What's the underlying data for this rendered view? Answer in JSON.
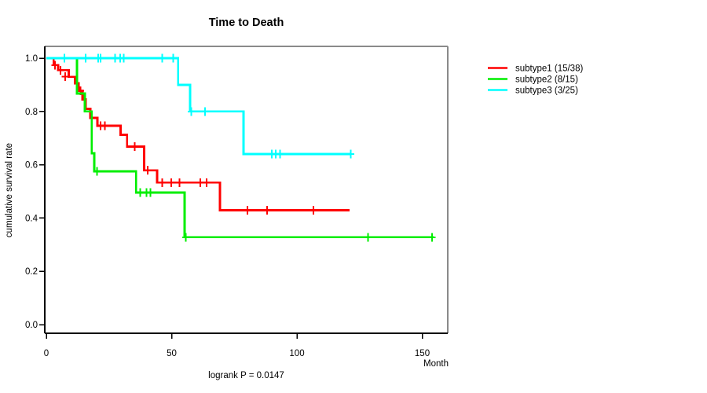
{
  "chart": {
    "title": "Time to Death",
    "xlabel": "Month",
    "ylabel": "cumulative survival rate",
    "footnote": "logrank P = 0.0147"
  },
  "chart_data": {
    "type": "line",
    "subtype": "kaplan-meier-step",
    "title": "Time to Death",
    "xlabel": "Month",
    "ylabel": "cumulative survival rate",
    "annotation": "logrank P = 0.0147",
    "xlim": [
      0,
      160
    ],
    "ylim": [
      0,
      1.0
    ],
    "x_ticks": [
      0,
      50,
      100,
      150
    ],
    "y_ticks": [
      0.0,
      0.2,
      0.4,
      0.6,
      0.8,
      1.0
    ],
    "grid": false,
    "legend_position": "right-outside-top",
    "box_border_colors": {
      "top": "#8a8a8a",
      "right": "#8a8a8a",
      "left": "#000000",
      "bottom": "#000000"
    },
    "series": [
      {
        "name": "subtype1 (15/38)",
        "color": "#ff0000",
        "steps": [
          [
            0,
            1.0
          ],
          [
            2.9,
            0.974
          ],
          [
            4.7,
            0.955
          ],
          [
            8.9,
            0.93
          ],
          [
            11.4,
            0.906
          ],
          [
            12.9,
            0.878
          ],
          [
            14.4,
            0.845
          ],
          [
            15.7,
            0.81
          ],
          [
            17.6,
            0.776
          ],
          [
            20.4,
            0.746
          ],
          [
            29.6,
            0.712
          ],
          [
            32.2,
            0.668
          ],
          [
            39.0,
            0.579
          ],
          [
            44.2,
            0.533
          ],
          [
            69.3,
            0.429
          ]
        ],
        "end_x": 121,
        "censor_marks": [
          [
            3.5,
            0.974
          ],
          [
            5.6,
            0.955
          ],
          [
            7.5,
            0.93
          ],
          [
            13.6,
            0.878
          ],
          [
            21.7,
            0.746
          ],
          [
            23.3,
            0.746
          ],
          [
            35.3,
            0.668
          ],
          [
            40.5,
            0.579
          ],
          [
            46.3,
            0.533
          ],
          [
            49.9,
            0.533
          ],
          [
            53.1,
            0.533
          ],
          [
            61.4,
            0.533
          ],
          [
            64.0,
            0.533
          ],
          [
            80.3,
            0.429
          ],
          [
            88.1,
            0.429
          ],
          [
            106.6,
            0.429
          ]
        ]
      },
      {
        "name": "subtype2 (8/15)",
        "color": "#00ee00",
        "steps": [
          [
            0,
            1.0
          ],
          [
            12.2,
            0.867
          ],
          [
            15.4,
            0.8
          ],
          [
            18.1,
            0.643
          ],
          [
            19.1,
            0.575
          ],
          [
            35.8,
            0.496
          ],
          [
            55.2,
            0.328
          ]
        ],
        "end_x": 154.5,
        "censor_marks": [
          [
            20.2,
            0.575
          ],
          [
            37.4,
            0.496
          ],
          [
            40.0,
            0.496
          ],
          [
            41.6,
            0.496
          ],
          [
            55.7,
            0.328
          ],
          [
            128.3,
            0.328
          ],
          [
            153.9,
            0.328
          ]
        ]
      },
      {
        "name": "subtype3 (3/25)",
        "color": "#00ffff",
        "steps": [
          [
            0,
            1.0
          ],
          [
            52.6,
            0.9
          ],
          [
            57.4,
            0.8
          ],
          [
            78.7,
            0.64
          ]
        ],
        "end_x": 121.5,
        "censor_marks": [
          [
            7.2,
            1.0
          ],
          [
            15.7,
            1.0
          ],
          [
            20.7,
            1.0
          ],
          [
            21.6,
            1.0
          ],
          [
            27.5,
            1.0
          ],
          [
            29.4,
            1.0
          ],
          [
            30.9,
            1.0
          ],
          [
            46.3,
            1.0
          ],
          [
            50.7,
            1.0
          ],
          [
            57.8,
            0.8
          ],
          [
            63.3,
            0.8
          ],
          [
            89.9,
            0.64
          ],
          [
            91.5,
            0.64
          ],
          [
            93.3,
            0.64
          ],
          [
            121.5,
            0.64
          ]
        ]
      }
    ]
  }
}
